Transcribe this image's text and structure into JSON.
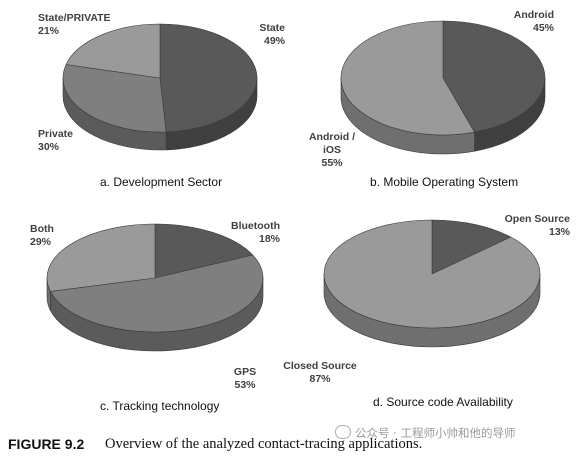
{
  "figure": {
    "number_label": "FIGURE 9.2",
    "caption": "Overview of the analyzed contact-tracing applications."
  },
  "watermark": "公众号 · 工程师小帅和他的导师",
  "colors": {
    "dark": "#595959",
    "light": "#9a9a9a",
    "mid": "#7f7f7f"
  },
  "chart_data": [
    {
      "type": "pie",
      "subtitle": "a.    Development Sector",
      "slices": [
        {
          "label": [
            "State",
            "49%"
          ],
          "value": 49,
          "shade": "dark"
        },
        {
          "label": [
            "Private",
            "30%"
          ],
          "value": 30,
          "shade": "mid"
        },
        {
          "label": [
            "State/PRIVATE",
            "21%"
          ],
          "value": 21,
          "shade": "light"
        }
      ]
    },
    {
      "type": "pie",
      "subtitle": "b.    Mobile Operating System",
      "slices": [
        {
          "label": [
            "Android",
            "45%"
          ],
          "value": 45,
          "shade": "dark"
        },
        {
          "label": [
            "Android /",
            "iOS",
            "55%"
          ],
          "value": 55,
          "shade": "light"
        }
      ]
    },
    {
      "type": "pie",
      "subtitle": "c.    Tracking technology",
      "slices": [
        {
          "label": [
            "Bluetooth",
            "18%"
          ],
          "value": 18,
          "shade": "dark"
        },
        {
          "label": [
            "GPS",
            "53%"
          ],
          "value": 53,
          "shade": "mid"
        },
        {
          "label": [
            "Both",
            "29%"
          ],
          "value": 29,
          "shade": "light"
        }
      ]
    },
    {
      "type": "pie",
      "subtitle": "d.    Source code Availability",
      "slices": [
        {
          "label": [
            "Open Source",
            "13%"
          ],
          "value": 13,
          "shade": "dark"
        },
        {
          "label": [
            "Closed Source",
            "87%"
          ],
          "value": 87,
          "shade": "light"
        }
      ]
    }
  ]
}
